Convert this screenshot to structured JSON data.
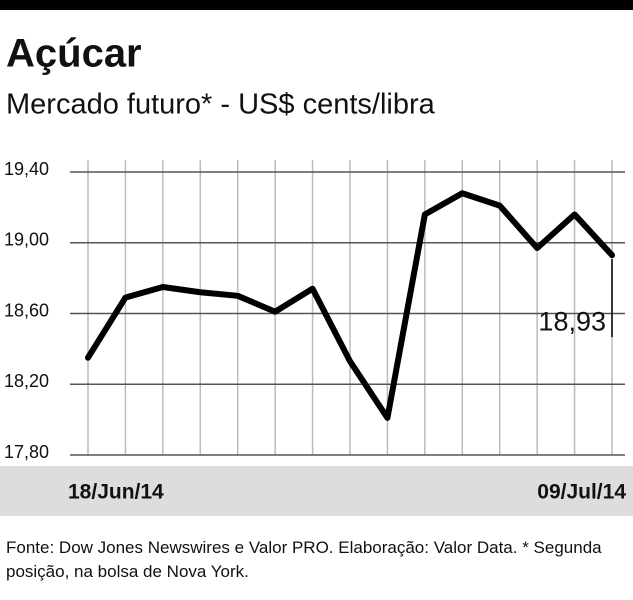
{
  "chart_data": {
    "type": "line",
    "title": "Açúcar",
    "subtitle": "Mercado futuro* - US$ cents/libra",
    "categories": [
      "18/Jun/14",
      null,
      null,
      null,
      null,
      null,
      null,
      null,
      null,
      null,
      null,
      null,
      null,
      null,
      "09/Jul/14"
    ],
    "values": [
      18.35,
      18.69,
      18.75,
      18.72,
      18.7,
      18.61,
      18.74,
      18.33,
      18.01,
      19.16,
      19.28,
      19.21,
      18.97,
      19.16,
      18.93
    ],
    "value_labels": [
      null,
      null,
      null,
      null,
      null,
      null,
      null,
      null,
      null,
      null,
      null,
      null,
      null,
      null,
      "18,93"
    ],
    "color": "#000000",
    "ylim": [
      17.8,
      19.4
    ],
    "yticks": [
      {
        "value": 17.8,
        "label": "17,80"
      },
      {
        "value": 18.2,
        "label": "18,20"
      },
      {
        "value": 18.6,
        "label": "18,60"
      },
      {
        "value": 19.0,
        "label": "19,00"
      },
      {
        "value": 19.4,
        "label": "19,40"
      }
    ],
    "grid": true,
    "source": "Fonte: Dow Jones Newswires e Valor PRO. Elaboração: Valor Data. * Segunda posição, na bolsa de Nova York."
  }
}
